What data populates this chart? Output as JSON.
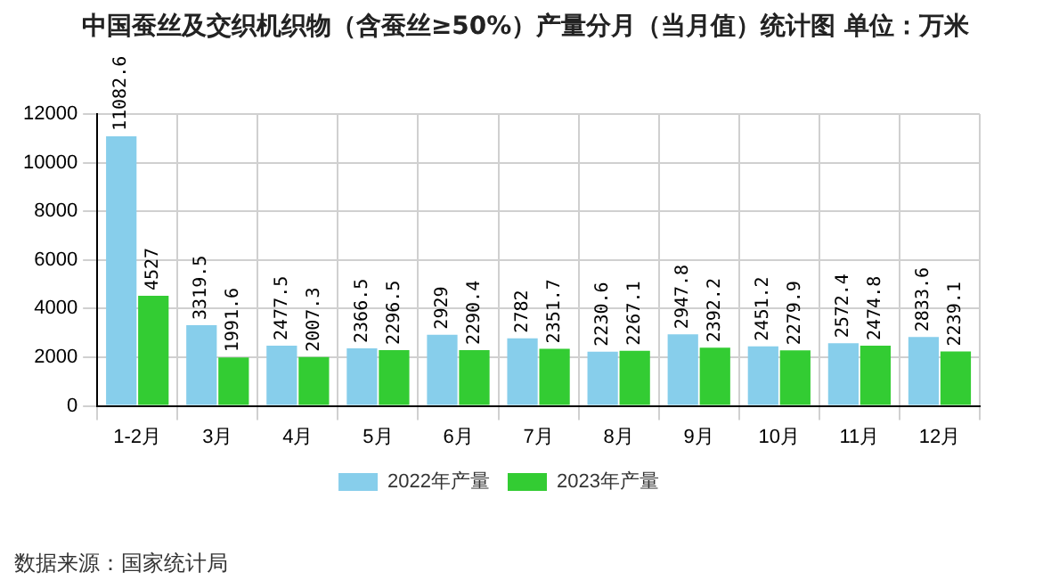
{
  "chart_data": {
    "type": "bar",
    "title": "中国蚕丝及交织机织物（含蚕丝≥50%）产量分月（当月值）统计图 单位：万米",
    "categories": [
      "1-2月",
      "3月",
      "4月",
      "5月",
      "6月",
      "7月",
      "8月",
      "9月",
      "10月",
      "11月",
      "12月"
    ],
    "series": [
      {
        "name": "2022年产量",
        "color": "#87ceeb",
        "values": [
          11082.6,
          3319.5,
          2477.5,
          2366.5,
          2929,
          2782,
          2230.6,
          2947.8,
          2451.2,
          2572.4,
          2833.6
        ]
      },
      {
        "name": "2023年产量",
        "color": "#33cc33",
        "values": [
          4527,
          1991.6,
          2007.3,
          2296.5,
          2290.4,
          2351.7,
          2267.1,
          2392.2,
          2279.9,
          2474.8,
          2239.1
        ]
      }
    ],
    "ylim": [
      0,
      12000
    ],
    "yticks": [
      0,
      2000,
      4000,
      6000,
      8000,
      10000,
      12000
    ],
    "grid": true,
    "legend": "bottom",
    "data_labels": true,
    "annotations": [
      "数据来源：国家统计局"
    ]
  }
}
